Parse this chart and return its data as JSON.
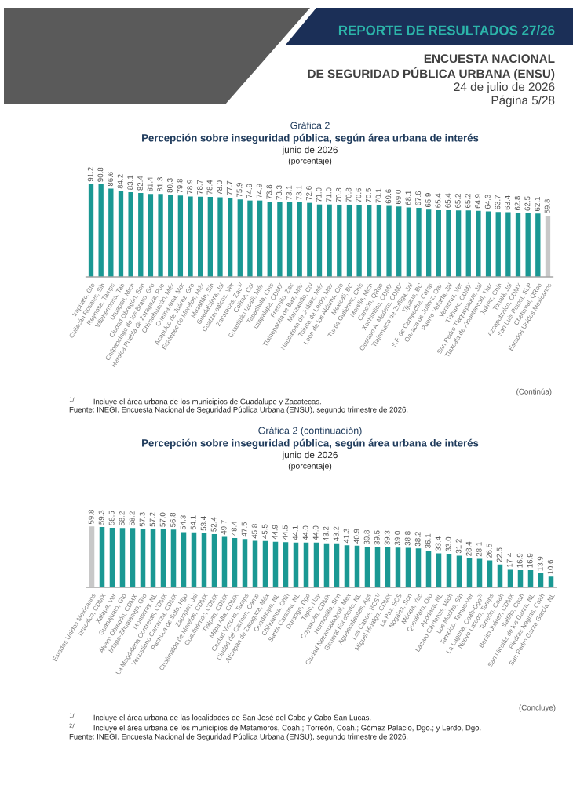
{
  "chart_data": [
    {
      "type": "bar",
      "title": "Percepción sobre inseguridad pública, según área urbana de interés",
      "subtitle": "junio de 2026",
      "annotations": [
        "REPORTE DE RESULTADOS 27/26",
        "ENCUESTA NACIONAL",
        "DE SEGURIDAD PÚBLICA URBANA (ENSU)",
        "24 de julio de 2026",
        "Página 5/28",
        "Gráfica 2",
        "(porcentaje)",
        "(Continúa)",
        "$^{1/}$         Incluye el área urbana de los municipios de Guadalupe y Zacatecas.",
        "Fuente: INEGI. Encuesta Nacional de Seguridad Pública Urbana (ENSU), segundo trimestre de 2026."
      ],
      "categories": [
        "Irapuato, Gto",
        "Culiacán Rosales, Sin",
        "Reynosa, Tamps",
        "Villahermosa, Tab",
        "Uruapan, Mich",
        "Ciudad Obregón, Son",
        "Chilpancingo de los Bravo, Gro",
        "Heroica Puebla de Zaragoza, Pue",
        "Chimalhuacán, Méx",
        "Cuernavaca, Mor",
        "Acapulco de Juárez, Gro",
        "Ecatepec de Morelos, Méx",
        "Mazatlán, Sin",
        "Guadalajara, Jal",
        "Coatzacoalcos, Ver",
        "Zacatecas, Zac$^{1/}$",
        "Colima, Col",
        "Cuautitlán Izcalli, Méx",
        "Tapachula, Chis",
        "Iztapalapa, CDMX",
        "Fresnillo, Zac",
        "Tlalnepantla de Baz, Méx",
        "Manzanillo, Col",
        "Naucalpan de Juárez, Méx",
        "Toluca de Lerdo, Méx",
        "León de los Aldama, Gto",
        "Mexicali, BC",
        "Tuxtla Gutiérrez, Chis",
        "Morelia, Mich",
        "Cancún, QRoo",
        "Xochimilco, CDMX",
        "Gustavo A. Madero, CDMX",
        "Tlajomulco de Zúñiga, Jal",
        "Tijuana, BC",
        "S.F. de Campeche, Camp",
        "Oaxaca de Juárez, Oax",
        "Puerto Vallarta, Jal",
        "Veracruz, Ver",
        "Tláhuac, CDMX",
        "San Pedro Tlaquepaque, Jal",
        "Tlaxcala de Xicohténcatl, Tlax",
        "Juárez, Chih",
        "Tonalá, Jal",
        "Azcapotzalco, CDMX",
        "San Luis Potosí, SLP",
        "Chetumal, QRoo",
        "Estados Unidos Mexicanos"
      ],
      "values": [
        91.2,
        90.8,
        86.6,
        84.2,
        83.1,
        82.4,
        81.4,
        81.3,
        80.3,
        79.8,
        78.9,
        78.7,
        78.4,
        78.0,
        77.7,
        75.9,
        74.9,
        74.9,
        73.8,
        73.3,
        73.1,
        73.1,
        72.6,
        71.0,
        71.0,
        70.8,
        70.8,
        70.6,
        70.5,
        70.1,
        69.6,
        69.0,
        68.1,
        67.6,
        65.9,
        65.4,
        65.4,
        65.2,
        65.2,
        64.9,
        64.3,
        63.7,
        63.4,
        62.8,
        62.5,
        62.1,
        59.8
      ],
      "value_labels": [
        "91.2",
        "90.8",
        "86.6",
        "84.2",
        "83.1",
        "82.4",
        "81.4",
        "81.3",
        "80.3",
        "79.8",
        "78.9",
        "78.7",
        "78.4",
        "78.0",
        "77.7",
        "75.9",
        "74.9",
        "74.9",
        "73.8",
        "73.3",
        "73.1",
        "73.1",
        "72.6",
        "71.0",
        "71.0",
        "70.8",
        "70.8",
        "70.6",
        "70.5",
        "70.1",
        "69.6",
        "69.0",
        "68.1",
        "67.6",
        "65.9",
        "65.4",
        "65.4",
        "65.2",
        "65.2",
        "64.9",
        "64.3",
        "63.7",
        "63.4",
        "62.8",
        "62.5",
        "62.1",
        "59.8"
      ],
      "colors": [
        "#1a9893",
        "#1a9893",
        "#1a9893",
        "#1a9893",
        "#1a9893",
        "#1a9893",
        "#1a9893",
        "#1a9893",
        "#1a9893",
        "#1a9893",
        "#1a9893",
        "#1a9893",
        "#1a9893",
        "#1a9893",
        "#1a9893",
        "#1a9893",
        "#1a9893",
        "#1a9893",
        "#1a9893",
        "#1a9893",
        "#1a9893",
        "#1a9893",
        "#1a9893",
        "#1a9893",
        "#1a9893",
        "#1a9893",
        "#1a9893",
        "#1a9893",
        "#1a9893",
        "#1a9893",
        "#1a9893",
        "#1a9893",
        "#1a9893",
        "#1a9893",
        "#1a9893",
        "#1a9893",
        "#1a9893",
        "#1a9893",
        "#1a9893",
        "#1a9893",
        "#1a9893",
        "#1a9893",
        "#1a9893",
        "#1a9893",
        "#1a9893",
        "#1a9893",
        "#c8c8c8"
      ],
      "tick_labels": "x"
    },
    {
      "type": "bar",
      "title": "Percepción sobre inseguridad pública, según área urbana de interés",
      "subtitle": "junio de 2026",
      "annotations": [
        "Gráfica 2 (continuación)",
        "(porcentaje)",
        "(Concluye)",
        "$^{1/}$         Incluye el área urbana de las localidades de San José del Cabo y Cabo San Lucas.",
        "$^{2/}$         Incluye el área urbana de los municipios de Matamoros, Coah.; Torreón, Coah.; Gómez Palacio, Dgo.; y Lerdo, Dgo.",
        "Fuente: INEGI. Encuesta Nacional de Seguridad Pública Urbana (ENSU), segundo trimestre de 2026."
      ],
      "categories": [
        "Estados Unidos Mexicanos",
        "Iztacalco, CDMX",
        "Xalapa, Ver",
        "Guanajuato, Gto",
        "Álvaro Obregón, CDMX",
        "Ixtapa-Zihuatanejo, Gro",
        "Monterrey, NL",
        "La Magdalena Contreras, CDMX",
        "Venustiano Carranza, CDMX",
        "Pachuca de Soto, Hgo",
        "Zapopan, Jal",
        "Cuajimalpa de Morelos, CDMX",
        "Cuauhtémoc, CDMX",
        "Tlalpan, CDMX",
        "Milpa Alta, CDMX",
        "Ciudad Victoria, Tamps",
        "Ciudad del Carmen, Camp",
        "Atizapán de Zaragoza, Méx",
        "Guadalupe, NL",
        "Chihuahua, Chih",
        "Santa Catarina, NL",
        "Durango, Dgo",
        "Tepic, Nay",
        "Coyoacán, CDMX",
        "Hermosillo, Son",
        "Ciudad Nezahualcóyotl, Méx",
        "General Escobedo, NL",
        "Aguascalientes, Ags",
        "Los Cabos, BCS$^{1/}$",
        "Miguel Hidalgo, CDMX",
        "La Paz, BCS",
        "Nogales, Son",
        "Mérida, Yuc",
        "Querétaro, Qro",
        "Apodaca, NL",
        "Lázaro Cárdenas, Mich",
        "Los Mochis, Sin",
        "Tampico, Tamps-Ver",
        "La Laguna, Coah-Dgo$^{2/}$",
        "Nuevo Laredo, Tamps",
        "Torreón, Coah",
        "Benito Juárez, CDMX",
        "Saltillo, Coah",
        "San Nicolás de los Garza, NL",
        "Piedras Negras, Coah",
        "San Pedro Garza García, NL"
      ],
      "values": [
        59.8,
        59.3,
        58.5,
        58.2,
        58.2,
        57.3,
        57.2,
        57.0,
        56.8,
        54.3,
        54.1,
        53.4,
        52.4,
        49.7,
        48.4,
        47.5,
        45.8,
        45.5,
        44.9,
        44.5,
        44.1,
        44.0,
        44.0,
        43.2,
        43.2,
        41.3,
        40.9,
        39.8,
        39.5,
        39.3,
        39.0,
        38.8,
        38.2,
        36.1,
        33.4,
        33.0,
        31.2,
        28.4,
        28.1,
        26.5,
        22.5,
        17.4,
        16.9,
        16.9,
        13.9,
        10.6
      ],
      "value_labels": [
        "59.8",
        "59.3",
        "58.5",
        "58.2",
        "58.2",
        "57.3",
        "57.2",
        "57.0",
        "56.8",
        "54.3",
        "54.1",
        "53.4",
        "52.4",
        "49.7",
        "48.4",
        "47.5",
        "45.8",
        "45.5",
        "44.9",
        "44.5",
        "44.1",
        "44.0",
        "44.0",
        "43.2",
        "43.2",
        "41.3",
        "40.9",
        "39.8",
        "39.5",
        "39.3",
        "39.0",
        "38.8",
        "38.2",
        "36.1",
        "33.4",
        "33.0",
        "31.2",
        "28.4",
        "28.1",
        "26.5",
        "22.5",
        "17.4",
        "16.9",
        "16.9",
        "13.9",
        "10.6"
      ],
      "colors": [
        "#c8c8c8",
        "#1a9893",
        "#1a9893",
        "#1a9893",
        "#1a9893",
        "#1a9893",
        "#1a9893",
        "#1a9893",
        "#1a9893",
        "#1a9893",
        "#1a9893",
        "#1a9893",
        "#1a9893",
        "#1a9893",
        "#1a9893",
        "#1a9893",
        "#1a9893",
        "#1a9893",
        "#1a9893",
        "#1a9893",
        "#1a9893",
        "#1a9893",
        "#1a9893",
        "#1a9893",
        "#1a9893",
        "#1a9893",
        "#1a9893",
        "#1a9893",
        "#1a9893",
        "#1a9893",
        "#1a9893",
        "#1a9893",
        "#1a9893",
        "#1a9893",
        "#1a9893",
        "#1a9893",
        "#1a9893",
        "#1a9893",
        "#1a9893",
        "#1a9893",
        "#1a9893",
        "#1a9893",
        "#1a9893",
        "#1a9893",
        "#1a9893",
        "#1a9893"
      ],
      "tick_labels": "x"
    }
  ]
}
